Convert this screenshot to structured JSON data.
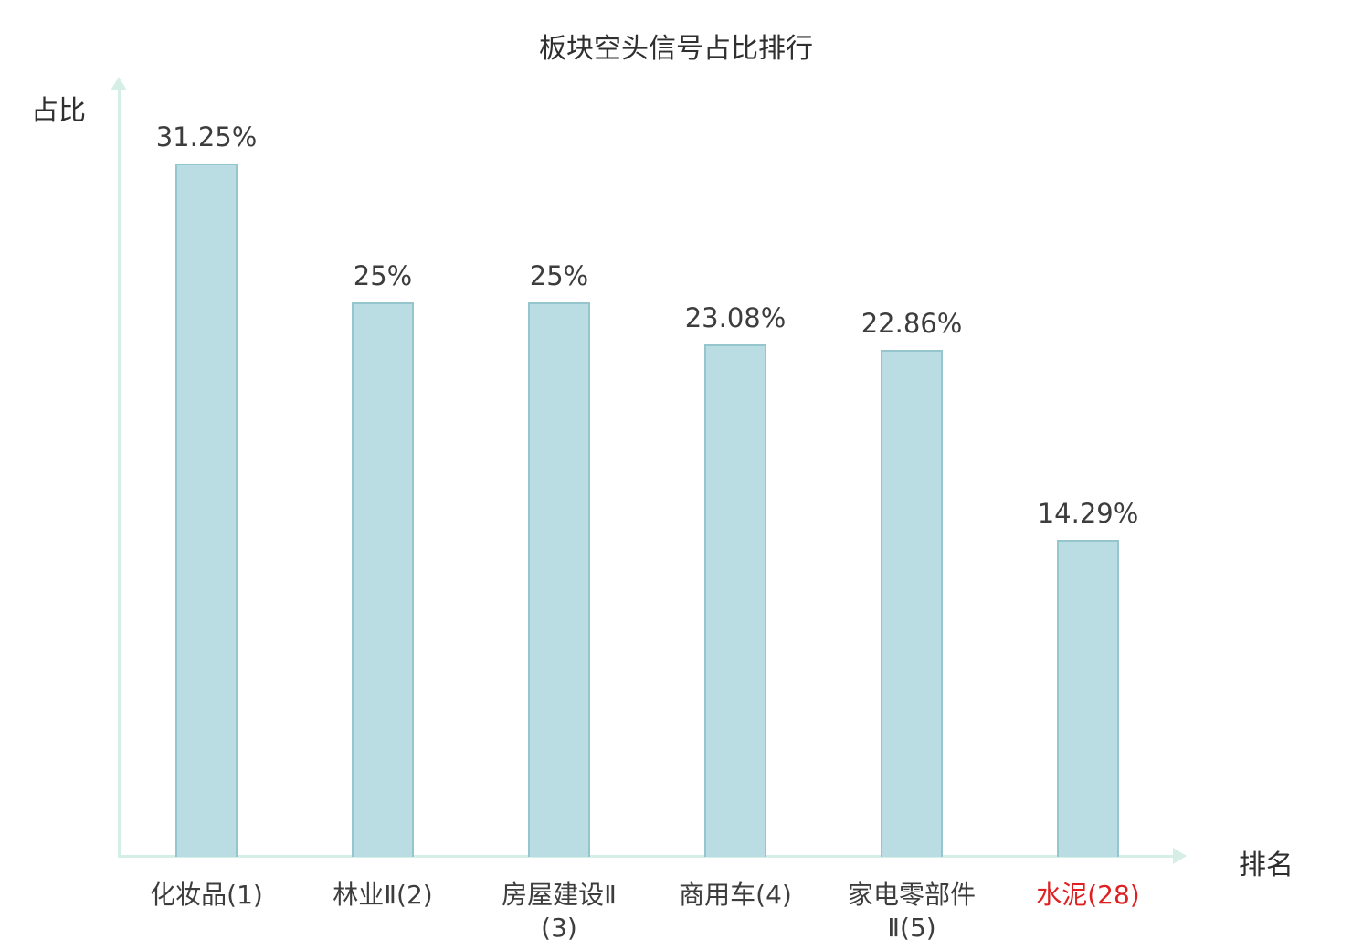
{
  "chart_data": {
    "type": "bar",
    "title": "板块空头信号占比排行",
    "xlabel": "排名",
    "ylabel": "占比",
    "categories": [
      "化妆品(1)",
      "林业Ⅱ(2)",
      "房屋建设Ⅱ(3)",
      "商用车(4)",
      "家电零部件Ⅱ(5)",
      "水泥(28)"
    ],
    "values": [
      31.25,
      25,
      25,
      23.08,
      22.86,
      14.29
    ],
    "value_labels": [
      "31.25%",
      "25%",
      "25%",
      "23.08%",
      "22.86%",
      "14.29%"
    ],
    "ylim": [
      0,
      35
    ],
    "grid": false,
    "legend": "none",
    "highlight_index": 5,
    "colors": {
      "bar_fill": "#b9dde3",
      "bar_border": "#95c6ce",
      "axis": "#d5efe6",
      "text": "#3d3d3d",
      "highlight": "#e02020"
    }
  }
}
